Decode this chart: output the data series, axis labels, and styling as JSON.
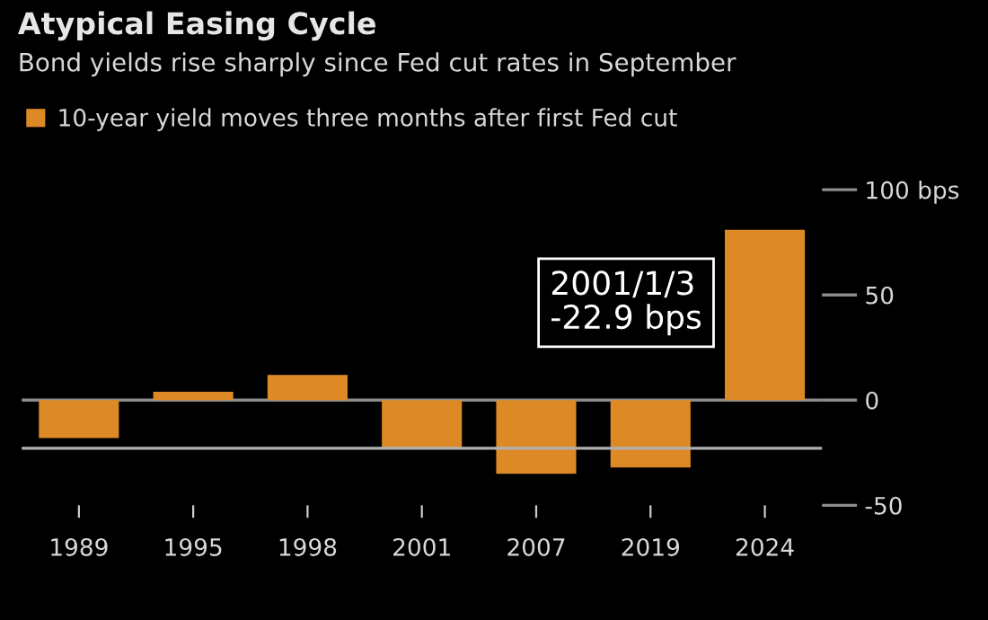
{
  "chart_data": {
    "type": "bar",
    "title": "Atypical Easing Cycle",
    "subtitle": "Bond yields rise sharply since Fed cut rates in September",
    "categories": [
      "1989",
      "1995",
      "1998",
      "2001",
      "2007",
      "2019",
      "2024"
    ],
    "series": [
      {
        "name": "10-year yield moves three months after first Fed cut",
        "color": "#dd8a26",
        "values": [
          -18,
          4,
          12,
          -22.9,
          -35,
          -32,
          81
        ]
      }
    ],
    "ylim": [
      -50,
      100
    ],
    "yticks": [
      {
        "value": 100,
        "label": "100 bps"
      },
      50,
      0,
      -50
    ],
    "ref_lines": [
      {
        "axis": "y",
        "value": -22.9,
        "color": "#b0b0b0"
      }
    ],
    "annotations": [
      "2001/1/3\n-22.9 bps"
    ],
    "legend": "top left",
    "grid": "y"
  }
}
